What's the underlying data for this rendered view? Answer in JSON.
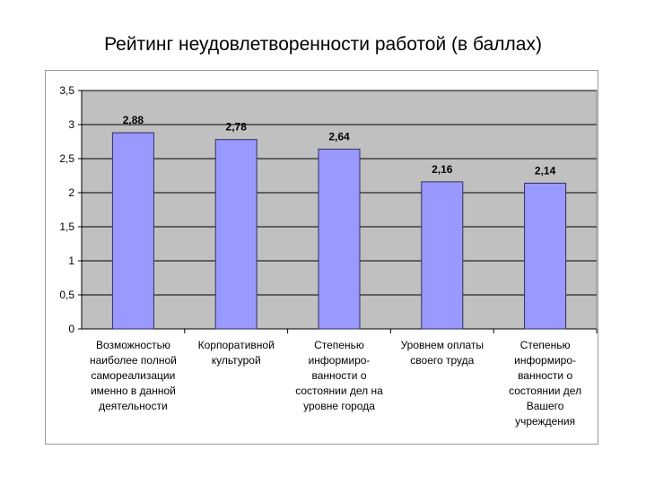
{
  "title": "Рейтинг неудовлетворенности работой (в баллах)",
  "colors": {
    "bar": "#9999ff",
    "bar_stroke": "#2f2f5f",
    "plot_bg": "#c0c0c0",
    "grid": "#000000"
  },
  "chart_data": {
    "type": "bar",
    "title": "Рейтинг неудовлетворенности работой (в баллах)",
    "categories": [
      [
        "Возможностью",
        "наиболее полной",
        "самореализации",
        "именно в данной",
        "деятельности"
      ],
      [
        "Корпоративной",
        "культурой"
      ],
      [
        "Степенью",
        "информиро-",
        "ванности о",
        "состоянии дел на",
        "уровне города"
      ],
      [
        "Уровнем оплаты",
        "своего труда"
      ],
      [
        "Степенью",
        "информиро-",
        "ванности о",
        "состоянии дел",
        "Вашего",
        "учреждения"
      ]
    ],
    "values": [
      2.88,
      2.78,
      2.64,
      2.16,
      2.14
    ],
    "value_labels": [
      "2,88",
      "2,78",
      "2,64",
      "2,16",
      "2,14"
    ],
    "yticks": [
      0,
      0.5,
      1,
      1.5,
      2,
      2.5,
      3,
      3.5
    ],
    "ytick_labels": [
      "0",
      "0,5",
      "1",
      "1,5",
      "2",
      "2,5",
      "3",
      "3,5"
    ],
    "ylim": [
      0,
      3.5
    ],
    "grid": true,
    "legend": "none"
  }
}
